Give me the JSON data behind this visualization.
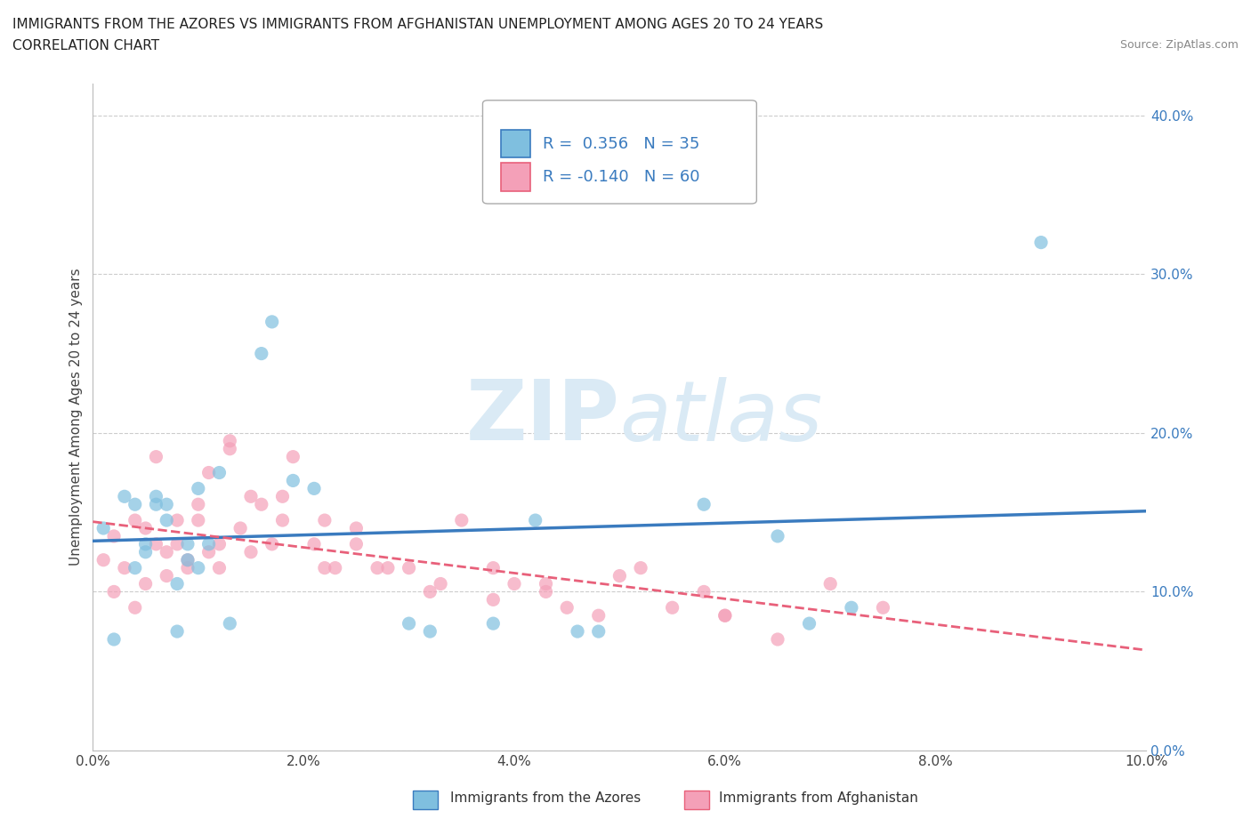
{
  "title_line1": "IMMIGRANTS FROM THE AZORES VS IMMIGRANTS FROM AFGHANISTAN UNEMPLOYMENT AMONG AGES 20 TO 24 YEARS",
  "title_line2": "CORRELATION CHART",
  "source_text": "Source: ZipAtlas.com",
  "ylabel_axis": "Unemployment Among Ages 20 to 24 years",
  "legend_bottom_azores": "Immigrants from the Azores",
  "legend_bottom_afghanistan": "Immigrants from Afghanistan",
  "xlim": [
    0.0,
    0.1
  ],
  "ylim": [
    0.0,
    0.42
  ],
  "xticks": [
    0.0,
    0.02,
    0.04,
    0.06,
    0.08,
    0.1
  ],
  "yticks": [
    0.0,
    0.1,
    0.2,
    0.3,
    0.4
  ],
  "azores_color": "#7fbfdf",
  "afghanistan_color": "#f4a0b8",
  "azores_line_color": "#3a7bbf",
  "afghanistan_line_color": "#e8607a",
  "watermark_color": "#daeaf5",
  "legend_R_azores": "0.356",
  "legend_N_azores": "35",
  "legend_R_afghanistan": "-0.140",
  "legend_N_afghanistan": "60",
  "azores_x": [
    0.001,
    0.002,
    0.003,
    0.004,
    0.004,
    0.005,
    0.005,
    0.006,
    0.006,
    0.007,
    0.007,
    0.008,
    0.008,
    0.009,
    0.009,
    0.01,
    0.01,
    0.011,
    0.012,
    0.013,
    0.016,
    0.017,
    0.019,
    0.021,
    0.03,
    0.032,
    0.038,
    0.042,
    0.046,
    0.048,
    0.058,
    0.065,
    0.068,
    0.072,
    0.09
  ],
  "azores_y": [
    0.14,
    0.07,
    0.16,
    0.155,
    0.115,
    0.125,
    0.13,
    0.155,
    0.16,
    0.145,
    0.155,
    0.075,
    0.105,
    0.13,
    0.12,
    0.165,
    0.115,
    0.13,
    0.175,
    0.08,
    0.25,
    0.27,
    0.17,
    0.165,
    0.08,
    0.075,
    0.08,
    0.145,
    0.075,
    0.075,
    0.155,
    0.135,
    0.08,
    0.09,
    0.32
  ],
  "afghanistan_x": [
    0.001,
    0.002,
    0.002,
    0.003,
    0.004,
    0.004,
    0.005,
    0.005,
    0.006,
    0.006,
    0.007,
    0.007,
    0.008,
    0.008,
    0.009,
    0.009,
    0.01,
    0.01,
    0.011,
    0.011,
    0.012,
    0.012,
    0.013,
    0.014,
    0.015,
    0.015,
    0.016,
    0.017,
    0.018,
    0.019,
    0.021,
    0.022,
    0.023,
    0.025,
    0.027,
    0.03,
    0.032,
    0.035,
    0.038,
    0.04,
    0.043,
    0.045,
    0.048,
    0.05,
    0.055,
    0.058,
    0.06,
    0.065,
    0.07,
    0.075,
    0.013,
    0.018,
    0.022,
    0.025,
    0.028,
    0.033,
    0.038,
    0.043,
    0.052,
    0.06
  ],
  "afghanistan_y": [
    0.12,
    0.1,
    0.135,
    0.115,
    0.145,
    0.09,
    0.14,
    0.105,
    0.13,
    0.185,
    0.125,
    0.11,
    0.13,
    0.145,
    0.115,
    0.12,
    0.145,
    0.155,
    0.125,
    0.175,
    0.13,
    0.115,
    0.195,
    0.14,
    0.16,
    0.125,
    0.155,
    0.13,
    0.145,
    0.185,
    0.13,
    0.115,
    0.115,
    0.13,
    0.115,
    0.115,
    0.1,
    0.145,
    0.115,
    0.105,
    0.1,
    0.09,
    0.085,
    0.11,
    0.09,
    0.1,
    0.085,
    0.07,
    0.105,
    0.09,
    0.19,
    0.16,
    0.145,
    0.14,
    0.115,
    0.105,
    0.095,
    0.105,
    0.115,
    0.085
  ]
}
